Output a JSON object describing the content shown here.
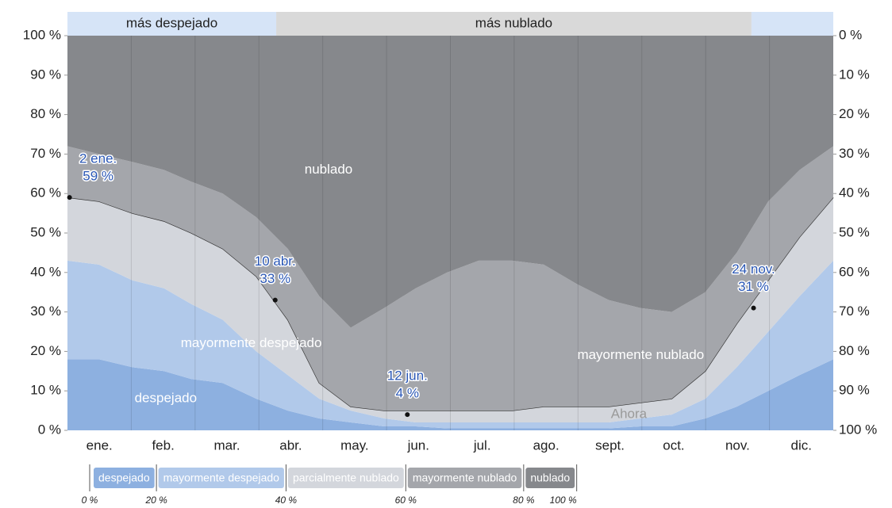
{
  "chart_data": {
    "type": "stacked_area",
    "x": [
      0,
      15,
      31,
      46,
      59,
      74,
      90,
      105,
      120,
      135,
      151,
      166,
      181,
      196,
      212,
      227,
      243,
      258,
      273,
      288,
      304,
      319,
      334,
      349,
      365
    ],
    "xlim": [
      0,
      365
    ],
    "months": [
      "ene.",
      "feb.",
      "mar.",
      "abr.",
      "may.",
      "jun.",
      "jul.",
      "ago.",
      "sept.",
      "oct.",
      "nov.",
      "dic."
    ],
    "ylim": [
      0,
      100
    ],
    "yticks": [
      {
        "value": 0,
        "label": "0 %"
      },
      {
        "value": 10,
        "label": "10 %"
      },
      {
        "value": 20,
        "label": "20 %"
      },
      {
        "value": 30,
        "label": "30 %"
      },
      {
        "value": 40,
        "label": "40 %"
      },
      {
        "value": 50,
        "label": "50 %"
      },
      {
        "value": 60,
        "label": "60 %"
      },
      {
        "value": 70,
        "label": "70 %"
      },
      {
        "value": 80,
        "label": "80 %"
      },
      {
        "value": 90,
        "label": "90 %"
      },
      {
        "value": 100,
        "label": "100 %"
      }
    ],
    "y2lim": [
      100,
      0
    ],
    "y2ticks": [
      {
        "value": 0,
        "label": "0 %"
      },
      {
        "value": 10,
        "label": "10 %"
      },
      {
        "value": 20,
        "label": "20 %"
      },
      {
        "value": 30,
        "label": "30 %"
      },
      {
        "value": 40,
        "label": "40 %"
      },
      {
        "value": 50,
        "label": "50 %"
      },
      {
        "value": 60,
        "label": "60 %"
      },
      {
        "value": 70,
        "label": "70 %"
      },
      {
        "value": 80,
        "label": "80 %"
      },
      {
        "value": 90,
        "label": "90 %"
      },
      {
        "value": 100,
        "label": "100 %"
      }
    ],
    "series": [
      {
        "name": "despejado",
        "color": "#8db0e0",
        "values": [
          18,
          18,
          16,
          15,
          13,
          12,
          8,
          5,
          3,
          2,
          1,
          1,
          0.5,
          0.5,
          0.5,
          0.5,
          0.5,
          0.5,
          1,
          1,
          3,
          6,
          10,
          14,
          18
        ]
      },
      {
        "name": "mayormente despejado",
        "color": "#b1c9ea",
        "values": [
          25,
          24,
          22,
          21,
          19,
          16,
          12,
          9,
          5,
          3,
          2,
          1,
          1.5,
          1.5,
          1.5,
          1.5,
          1.5,
          1.5,
          2,
          3,
          5,
          10,
          15,
          20,
          25
        ]
      },
      {
        "name": "parcialmente nublado",
        "color": "#d3d6dc",
        "values": [
          16,
          16,
          17,
          17,
          18,
          18,
          19,
          14,
          4,
          1,
          2,
          3,
          3,
          3,
          3,
          4,
          4,
          4,
          4,
          4,
          7,
          11,
          13,
          15,
          16
        ]
      },
      {
        "name": "mayormente nublado",
        "color": "#a4a6ab",
        "values": [
          13,
          12,
          13,
          13,
          13,
          14,
          15,
          18,
          22,
          20,
          26,
          31,
          35,
          38,
          38,
          36,
          31,
          27,
          24,
          22,
          20,
          18,
          20,
          17,
          13
        ]
      },
      {
        "name": "nublado",
        "color": "#86888c",
        "values": [
          28,
          30,
          32,
          34,
          37,
          40,
          46,
          54,
          66,
          74,
          69,
          64,
          60,
          57,
          57,
          58,
          63,
          67,
          69,
          70,
          65,
          55,
          42,
          34,
          28
        ]
      }
    ],
    "season_bands": [
      {
        "label": "más despejado",
        "start": 0,
        "end": 99.5,
        "color": "#d6e4f7"
      },
      {
        "label": "más nublado",
        "start": 99.5,
        "end": 326,
        "color": "#d9d9d9"
      },
      {
        "start": 326,
        "end": 365,
        "color": "#d6e4f7"
      }
    ],
    "band_labels": [
      {
        "text": "nublado",
        "x": 113,
        "y": 66
      },
      {
        "text": "mayormente despejado",
        "x": 54,
        "y": 22
      },
      {
        "text": "mayormente nublado",
        "x": 243,
        "y": 19
      },
      {
        "text": "despejado",
        "x": 32,
        "y": 8
      },
      {
        "text": "Ahora",
        "x": 259,
        "y": 4
      }
    ],
    "annotations": [
      {
        "date": "2 ene.",
        "value_label": "59 %",
        "x": 1,
        "y": 59
      },
      {
        "date": "10 abr.",
        "value_label": "33 %",
        "x": 99,
        "y": 33
      },
      {
        "date": "12 jun.",
        "value_label": "4 %",
        "x": 162,
        "y": 4
      },
      {
        "date": "24 nov.",
        "value_label": "31 %",
        "x": 327,
        "y": 31
      }
    ],
    "legend_scale": [
      {
        "value": 0,
        "label": "0 %"
      },
      {
        "value": 20,
        "label": "20 %"
      },
      {
        "value": 40,
        "label": "40 %"
      },
      {
        "value": 60,
        "label": "60 %"
      },
      {
        "value": 80,
        "label": "80 %"
      },
      {
        "value": 100,
        "label": "100 %"
      }
    ]
  }
}
